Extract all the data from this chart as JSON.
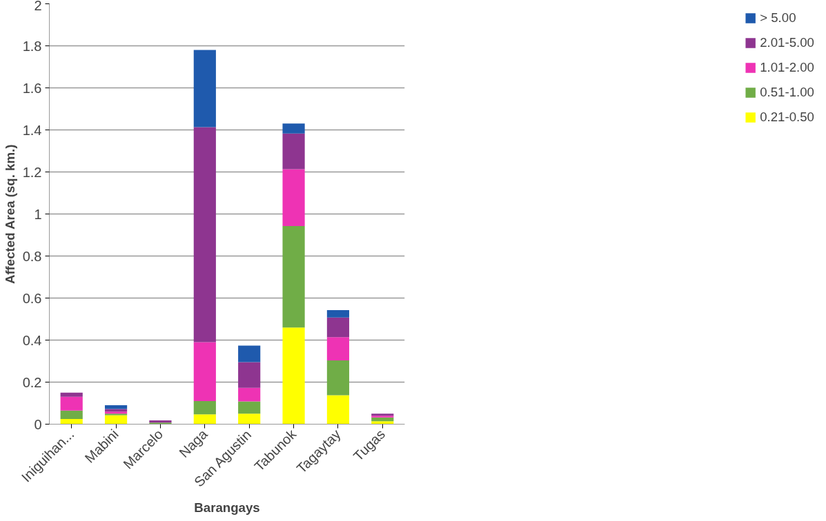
{
  "chart_data": {
    "type": "bar",
    "stacked": true,
    "xlabel": "Barangays",
    "ylabel": "Affected Area (sq. km.)",
    "categories": [
      "Iniguihan...",
      "Mabini",
      "Marcelo",
      "Naga",
      "San Agustin",
      "Tabunok",
      "Tagaytay",
      "Tugas"
    ],
    "series": [
      {
        "name": "0.21-0.50",
        "color": "#ffff00",
        "values": [
          0.025,
          0.043,
          0,
          0.047,
          0.05,
          0.46,
          0.138,
          0.014
        ]
      },
      {
        "name": "0.51-1.00",
        "color": "#70ad47",
        "values": [
          0.04,
          0.007,
          0.007,
          0.063,
          0.058,
          0.483,
          0.165,
          0.018
        ]
      },
      {
        "name": "1.01-2.00",
        "color": "#ee33b4",
        "values": [
          0.065,
          0.01,
          0,
          0.28,
          0.065,
          0.27,
          0.111,
          0.008
        ]
      },
      {
        "name": "2.01-5.00",
        "color": "#8e3590",
        "values": [
          0.02,
          0.012,
          0.011,
          1.023,
          0.122,
          0.17,
          0.093,
          0.01
        ]
      },
      {
        "name": "> 5.00",
        "color": "#1f5aad",
        "values": [
          0,
          0.018,
          0,
          0.367,
          0.079,
          0.047,
          0.036,
          0
        ]
      }
    ],
    "ylim": [
      0,
      2
    ],
    "yticks": [
      0,
      0.2,
      0.4,
      0.6,
      0.8,
      1,
      1.2,
      1.4,
      1.6,
      1.8,
      2
    ],
    "grid": "y",
    "legend": "right"
  }
}
